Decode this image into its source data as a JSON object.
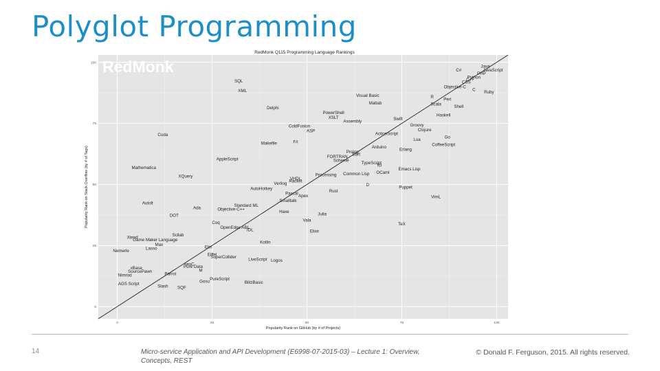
{
  "slide": {
    "title": "Polyglot Programming",
    "page_number": "14",
    "footer_course": "Micro-service Application and API Development (E6998-07-2015-03) – Lecture 1: Overview, Concepts, REST",
    "footer_copyright": "© Donald F. Ferguson, 2015. All rights reserved."
  },
  "colors": {
    "title": "#1e8fc6",
    "plot_background": "#e5e5e5",
    "grid_major": "#ffffff",
    "grid_minor": "#f0f0f0",
    "trend_line": "#222222",
    "point_text": "#222222",
    "watermark": "#ffffff"
  },
  "chart_data": {
    "type": "scatter",
    "title": "RedMonk Q115 Programming Language Rankings",
    "watermark": "RedMonk",
    "xlabel": "Popularity Rank on GitHub (by # of Projects)",
    "ylabel": "Popularity Rank on Stack Overflow (by # of Tags)",
    "xlim": [
      -5,
      103
    ],
    "ylim": [
      -5,
      103
    ],
    "xticks": [
      0,
      25,
      50,
      75,
      100
    ],
    "yticks": [
      0,
      25,
      50,
      75,
      100
    ],
    "grid": true,
    "reference_line": "y = x",
    "points": [
      {
        "label": "JavaScript",
        "x": 99,
        "y": 97
      },
      {
        "label": "Java",
        "x": 97,
        "y": 98.5
      },
      {
        "label": "PHP",
        "x": 96,
        "y": 95.5
      },
      {
        "label": "Python",
        "x": 94,
        "y": 94
      },
      {
        "label": "C#",
        "x": 90,
        "y": 97
      },
      {
        "label": "C++",
        "x": 93,
        "y": 93
      },
      {
        "label": "CSS",
        "x": 92,
        "y": 92
      },
      {
        "label": "Objective-C",
        "x": 89,
        "y": 90
      },
      {
        "label": "C",
        "x": 94,
        "y": 89
      },
      {
        "label": "Ruby",
        "x": 98,
        "y": 88
      },
      {
        "label": "R",
        "x": 83,
        "y": 86
      },
      {
        "label": "Perl",
        "x": 87,
        "y": 85
      },
      {
        "label": "Scala",
        "x": 84,
        "y": 83
      },
      {
        "label": "Shell",
        "x": 90,
        "y": 82
      },
      {
        "label": "Haskell",
        "x": 86,
        "y": 78.5
      },
      {
        "label": "Visual Basic",
        "x": 66,
        "y": 86.5
      },
      {
        "label": "Matlab",
        "x": 68,
        "y": 83.5
      },
      {
        "label": "SQL",
        "x": 32,
        "y": 92.5
      },
      {
        "label": "XML",
        "x": 33,
        "y": 88.5
      },
      {
        "label": "Delphi",
        "x": 41,
        "y": 81.5
      },
      {
        "label": "PowerShell",
        "x": 57,
        "y": 79.5
      },
      {
        "label": "XSLT",
        "x": 57,
        "y": 77.5
      },
      {
        "label": "Assembly",
        "x": 62,
        "y": 76
      },
      {
        "label": "Swift",
        "x": 74,
        "y": 77
      },
      {
        "label": "Groovy",
        "x": 79,
        "y": 74.5
      },
      {
        "label": "Clojure",
        "x": 81,
        "y": 72.5
      },
      {
        "label": "ColdFusion",
        "x": 48,
        "y": 74
      },
      {
        "label": "ASP",
        "x": 51,
        "y": 72
      },
      {
        "label": "ActionScript",
        "x": 71,
        "y": 71
      },
      {
        "label": "Go",
        "x": 87,
        "y": 69.5
      },
      {
        "label": "Lua",
        "x": 79,
        "y": 68.5
      },
      {
        "label": "CoffeeScript",
        "x": 86,
        "y": 66.5
      },
      {
        "label": "Cuda",
        "x": 12,
        "y": 70.5
      },
      {
        "label": "F#",
        "x": 47,
        "y": 67.5
      },
      {
        "label": "Makefile",
        "x": 40,
        "y": 67
      },
      {
        "label": "Arduino",
        "x": 69,
        "y": 65.5
      },
      {
        "label": "Erlang",
        "x": 76,
        "y": 64.5
      },
      {
        "label": "Prolog",
        "x": 62,
        "y": 63.5
      },
      {
        "label": "Dart",
        "x": 63,
        "y": 62.5
      },
      {
        "label": "FORTRAN",
        "x": 58,
        "y": 61.5
      },
      {
        "label": "Scheme",
        "x": 59,
        "y": 60
      },
      {
        "label": "AppleScript",
        "x": 29,
        "y": 60.5
      },
      {
        "label": "TypeScript",
        "x": 67,
        "y": 59
      },
      {
        "label": "Tcl",
        "x": 69,
        "y": 58
      },
      {
        "label": "Mathematica",
        "x": 7,
        "y": 57
      },
      {
        "label": "Emacs Lisp",
        "x": 77,
        "y": 56.5
      },
      {
        "label": "Common Lisp",
        "x": 63,
        "y": 54.5
      },
      {
        "label": "OCaml",
        "x": 70,
        "y": 55
      },
      {
        "label": "XQuery",
        "x": 18,
        "y": 53.5
      },
      {
        "label": "Processing",
        "x": 55,
        "y": 54
      },
      {
        "label": "VHDL",
        "x": 47,
        "y": 52.5
      },
      {
        "label": "Racket",
        "x": 47,
        "y": 51.5
      },
      {
        "label": "Verilog",
        "x": 43,
        "y": 50.5
      },
      {
        "label": "D",
        "x": 66,
        "y": 50
      },
      {
        "label": "Puppet",
        "x": 76,
        "y": 49
      },
      {
        "label": "AutoHotkey",
        "x": 38,
        "y": 48.5
      },
      {
        "label": "Rust",
        "x": 57,
        "y": 47.5
      },
      {
        "label": "Pascal",
        "x": 46,
        "y": 46.5
      },
      {
        "label": "Apex",
        "x": 49,
        "y": 45.5
      },
      {
        "label": "Smalltalk",
        "x": 45,
        "y": 43.5
      },
      {
        "label": "VimL",
        "x": 84,
        "y": 45
      },
      {
        "label": "Autolt",
        "x": 8,
        "y": 42.5
      },
      {
        "label": "Standard ML",
        "x": 34,
        "y": 41.5
      },
      {
        "label": "Ada",
        "x": 21,
        "y": 40.5
      },
      {
        "label": "Objective-C++",
        "x": 30,
        "y": 40
      },
      {
        "label": "Haxe",
        "x": 44,
        "y": 39
      },
      {
        "label": "Julia",
        "x": 54,
        "y": 38
      },
      {
        "label": "DOT",
        "x": 15,
        "y": 37.5
      },
      {
        "label": "Vala",
        "x": 50,
        "y": 35.5
      },
      {
        "label": "Coq",
        "x": 26,
        "y": 34.5
      },
      {
        "label": "TeX",
        "x": 75,
        "y": 34
      },
      {
        "label": "OpenEdge ABL",
        "x": 31,
        "y": 32.5
      },
      {
        "label": "IDL",
        "x": 35,
        "y": 31.5
      },
      {
        "label": "Elixir",
        "x": 52,
        "y": 31
      },
      {
        "label": "Scilab",
        "x": 16,
        "y": 29.5
      },
      {
        "label": "Xtend",
        "x": 4,
        "y": 28.5
      },
      {
        "label": "Game Maker Language",
        "x": 10,
        "y": 27.5
      },
      {
        "label": "Kotlin",
        "x": 39,
        "y": 26.5
      },
      {
        "label": "Max",
        "x": 11,
        "y": 25.5
      },
      {
        "label": "Elm",
        "x": 24,
        "y": 24.5
      },
      {
        "label": "Lasso",
        "x": 9,
        "y": 24
      },
      {
        "label": "Nemerle",
        "x": 1,
        "y": 23
      },
      {
        "label": "Eiffel",
        "x": 25,
        "y": 21.5
      },
      {
        "label": "SuperCollider",
        "x": 28,
        "y": 20.5
      },
      {
        "label": "LiveScript",
        "x": 37,
        "y": 19.5
      },
      {
        "label": "Logos",
        "x": 42,
        "y": 19
      },
      {
        "label": "nesC",
        "x": 19,
        "y": 17.5
      },
      {
        "label": "Pure Data",
        "x": 20,
        "y": 16.5
      },
      {
        "label": "xBase",
        "x": 5,
        "y": 16
      },
      {
        "label": "M",
        "x": 22,
        "y": 15
      },
      {
        "label": "SourcePawn",
        "x": 6,
        "y": 14.5
      },
      {
        "label": "Parrot",
        "x": 14,
        "y": 13.5
      },
      {
        "label": "Nimrod",
        "x": 2,
        "y": 13
      },
      {
        "label": "PureScript",
        "x": 27,
        "y": 11.5
      },
      {
        "label": "Gosu",
        "x": 23,
        "y": 10.5
      },
      {
        "label": "BlitzBasic",
        "x": 36,
        "y": 10
      },
      {
        "label": "AGS Script",
        "x": 3,
        "y": 9.5
      },
      {
        "label": "Slash",
        "x": 12,
        "y": 8.5
      },
      {
        "label": "SQF",
        "x": 17,
        "y": 8
      }
    ]
  }
}
